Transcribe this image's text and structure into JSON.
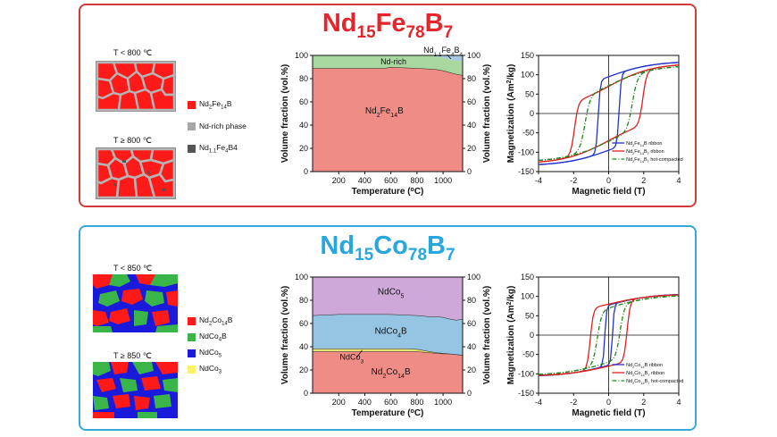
{
  "top": {
    "title": {
      "base": "Nd",
      "s1": "15",
      "mid": "Fe",
      "s2": "78",
      "end": "B",
      "s3": "7"
    },
    "micro": {
      "label_low": "T < 800 ℃",
      "label_high": "T ≥ 800 ℃"
    },
    "legend": [
      {
        "pre": "Nd",
        "s1": "2",
        "mid": "Fe",
        "s2": "14",
        "post": "B",
        "color": "#ff1a1a"
      },
      {
        "pre": "Nd-rich phase",
        "s1": "",
        "mid": "",
        "s2": "",
        "post": "",
        "color": "#a6a6a6"
      },
      {
        "pre": "Nd",
        "s1": "1.1",
        "mid": "Fe",
        "s2": "4",
        "post": "B4",
        "color": "#555555"
      }
    ]
  },
  "bottom": {
    "title": {
      "base": "Nd",
      "s1": "15",
      "mid": "Co",
      "s2": "78",
      "end": "B",
      "s3": "7"
    },
    "micro": {
      "label_low": "T < 850 ℃",
      "label_high": "T ≥ 850 ℃"
    },
    "legend": [
      {
        "pre": "Nd",
        "s1": "2",
        "mid": "Co",
        "s2": "14",
        "post": "B",
        "color": "#ff1a1a"
      },
      {
        "pre": "NdCo",
        "s1": "4",
        "mid": "B",
        "s2": "",
        "post": "",
        "color": "#39b54a"
      },
      {
        "pre": "NdCo",
        "s1": "5",
        "mid": "",
        "s2": "",
        "post": "",
        "color": "#1a1adb"
      },
      {
        "pre": "NdCo",
        "s1": "3",
        "mid": "",
        "s2": "",
        "post": "",
        "color": "#fff26b"
      }
    ]
  },
  "chart_data": [
    {
      "id": "fe-phase",
      "type": "area",
      "xlabel": "Temperature (oC)",
      "ylabel_left": "Volume fraction (vol.%)",
      "ylabel_right": "Volume fraction (vol.%)",
      "xlim": [
        0,
        1150
      ],
      "ylim": [
        0,
        100
      ],
      "xticks": [
        200,
        400,
        600,
        800,
        1000
      ],
      "yticks": [
        0,
        20,
        40,
        60,
        80,
        100
      ],
      "x": [
        0,
        200,
        400,
        550,
        600,
        700,
        800,
        900,
        950,
        1000,
        1050,
        1100,
        1150
      ],
      "series": [
        {
          "name": "Nd2Fe14B",
          "color": "#f08c86",
          "upper": [
            89,
            89,
            89,
            89,
            90,
            89.5,
            89,
            88.5,
            88,
            87,
            85.5,
            84,
            83
          ]
        },
        {
          "name": "Nd-rich",
          "color": "#a8d8a0",
          "upper": [
            100,
            100,
            100,
            100,
            100,
            100,
            100,
            100,
            99,
            98,
            96.5,
            95.5,
            95
          ]
        },
        {
          "name": "Nd1.1Fe4B4",
          "color": "#a8c8e0",
          "upper": [
            100,
            100,
            100,
            100,
            100,
            100,
            100,
            100,
            100,
            100,
            100,
            100,
            100
          ]
        }
      ],
      "labels": {
        "main": "Nd2Fe14B",
        "nd_rich": "Nd-rich",
        "boride": "Nd1.1Fe4B4"
      }
    },
    {
      "id": "co-phase",
      "type": "area",
      "xlabel": "Temperature (oC)",
      "ylabel_left": "Volume fraction (vol.%)",
      "ylabel_right": "Volume fraction (vol.%)",
      "xlim": [
        0,
        1150
      ],
      "ylim": [
        0,
        100
      ],
      "xticks": [
        200,
        400,
        600,
        800,
        1000
      ],
      "yticks": [
        0,
        20,
        40,
        60,
        80,
        100
      ],
      "x": [
        0,
        200,
        400,
        600,
        700,
        800,
        850,
        900,
        950,
        1000,
        1050,
        1100,
        1150
      ],
      "series": [
        {
          "name": "Nd2Co14B",
          "color": "#f08c86",
          "upper": [
            36,
            36,
            36,
            36,
            36,
            36,
            35.5,
            35,
            34.5,
            34,
            34,
            33.5,
            33
          ]
        },
        {
          "name": "NdCo3",
          "color": "#e5e37a",
          "upper": [
            38.5,
            38.5,
            38.5,
            38.5,
            38.5,
            38,
            37,
            36,
            35,
            34.5,
            34,
            33.5,
            33
          ]
        },
        {
          "name": "NdCo4B",
          "color": "#96c5e3",
          "upper": [
            67,
            68,
            68,
            68,
            67.5,
            67,
            66.5,
            66,
            66,
            65.5,
            64,
            63,
            64
          ]
        },
        {
          "name": "NdCo5",
          "color": "#cda8d8",
          "upper": [
            100,
            100,
            100,
            100,
            100,
            100,
            100,
            100,
            100,
            100,
            100,
            100,
            100
          ]
        }
      ],
      "labels": {
        "nd2": "Nd2Co14B",
        "ndco3": "NdCo3",
        "ndco4b": "NdCo4B",
        "ndco5": "NdCo5"
      }
    },
    {
      "id": "fe-hysteresis",
      "type": "line",
      "xlabel": "Magnetic field (T)",
      "ylabel": "Magnetization (Am2/kg)",
      "xlim": [
        -4,
        4
      ],
      "ylim": [
        -150,
        150
      ],
      "xticks": [
        -4,
        -2,
        0,
        2,
        4
      ],
      "yticks": [
        -150,
        -100,
        -50,
        0,
        50,
        100,
        150
      ],
      "series": [
        {
          "name": "Nd2Fe14B ribbon",
          "color": "#2233cc",
          "dash": "none",
          "ms": 135,
          "mr": 95,
          "hc": 0.6,
          "w": 0.12
        },
        {
          "name": "Nd2Fe14B7 ribbon",
          "color": "#dd2020",
          "dash": "none",
          "ms": 130,
          "mr": 70,
          "hc": 1.95,
          "w": 0.22
        },
        {
          "name": "Nd2Fe14B7 hot-compacted",
          "color": "#1a8a1a",
          "dash": "5,2,1,2",
          "ms": 125,
          "mr": 72,
          "hc": 1.35,
          "w": 0.3
        }
      ]
    },
    {
      "id": "co-hysteresis",
      "type": "line",
      "xlabel": "Magnetic field (T)",
      "ylabel": "Magnetization (Am2/kg)",
      "xlim": [
        -4,
        4
      ],
      "ylim": [
        -150,
        150
      ],
      "xticks": [
        -4,
        -2,
        0,
        2,
        4
      ],
      "yticks": [
        -150,
        -100,
        -50,
        0,
        50,
        100,
        150
      ],
      "series": [
        {
          "name": "Nd2Co14B ribbon",
          "color": "#2233cc",
          "dash": "none",
          "ms": 107,
          "mr": 78,
          "hc": 0.22,
          "w": 0.1
        },
        {
          "name": "Nd2Co14B7 ribbon",
          "color": "#dd2020",
          "dash": "none",
          "ms": 106,
          "mr": 80,
          "hc": 1.05,
          "w": 0.18
        },
        {
          "name": "Nd2Co14B7 hot-compacted",
          "color": "#1a8a1a",
          "dash": "5,2,1,2",
          "ms": 104,
          "mr": 70,
          "hc": 0.65,
          "w": 0.25
        }
      ]
    }
  ]
}
